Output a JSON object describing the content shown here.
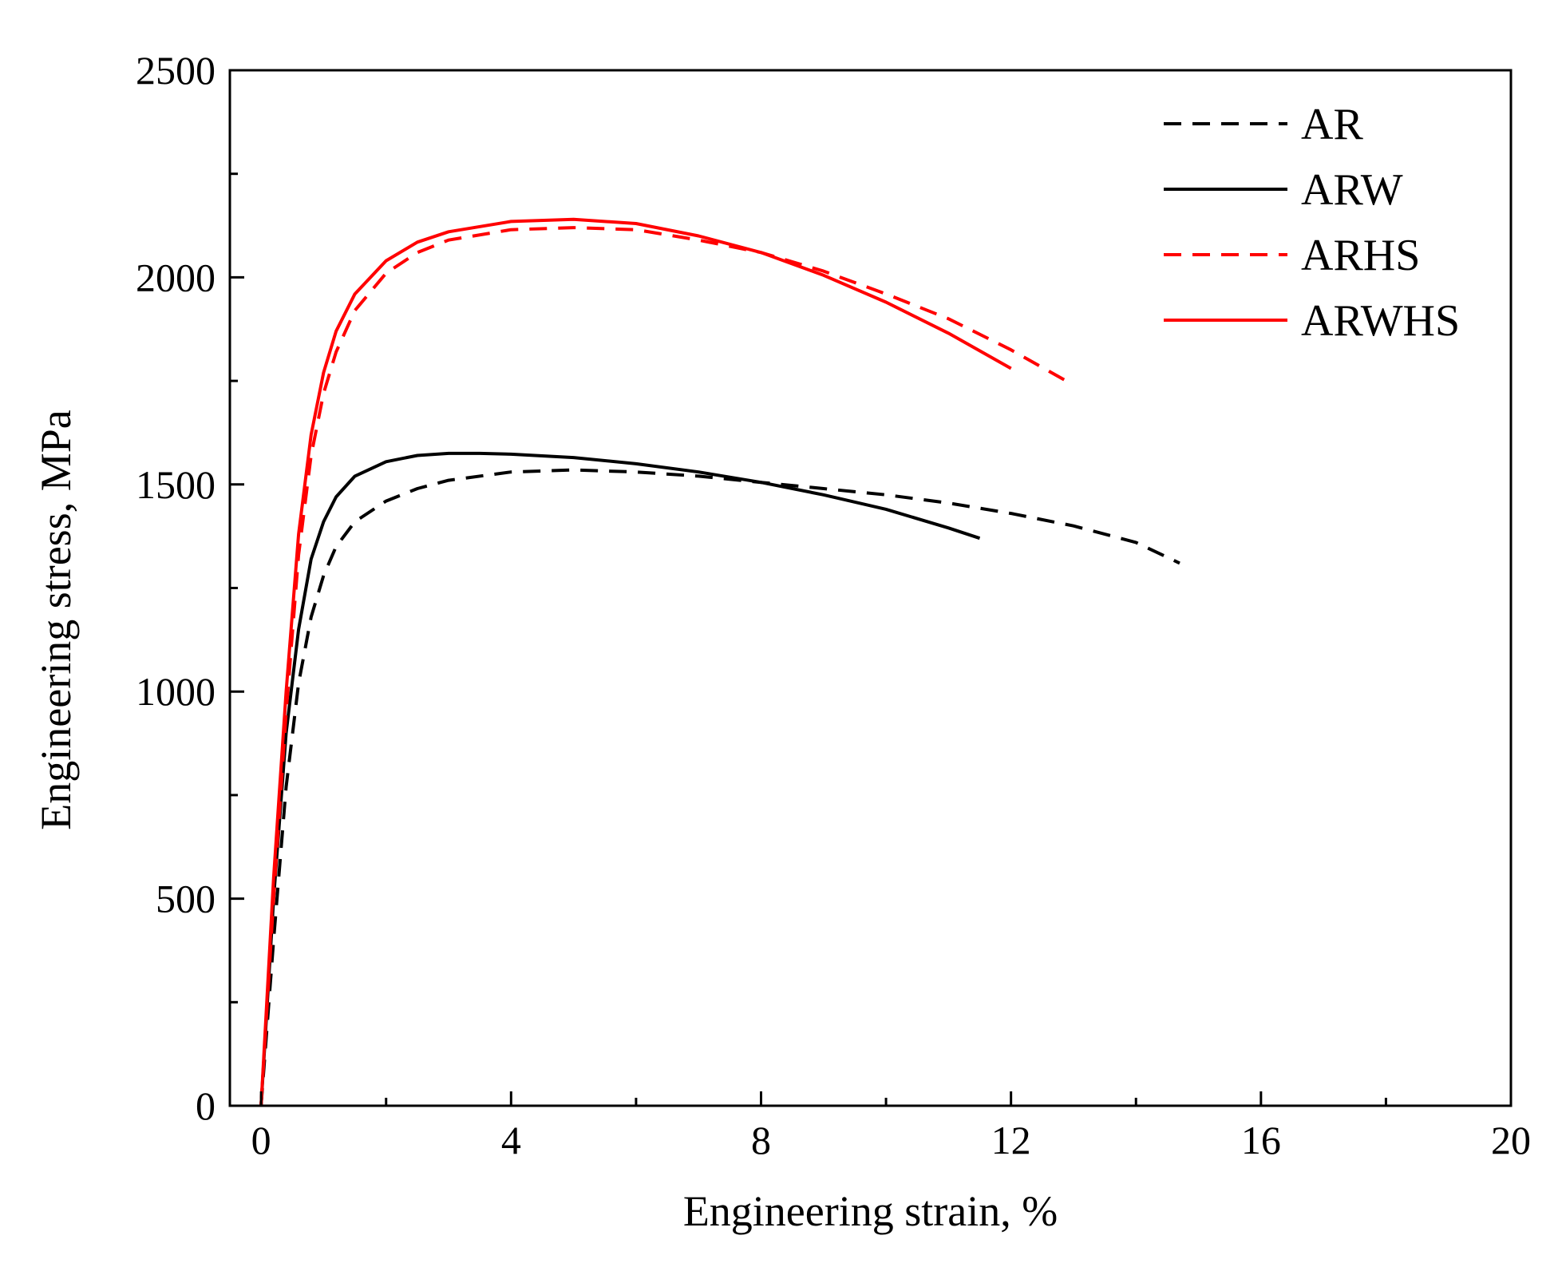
{
  "chart_data": {
    "type": "line",
    "title": "",
    "xlabel": "Engineering strain, %",
    "ylabel": "Engineering stress, MPa",
    "xlim": [
      -0.5,
      20
    ],
    "ylim": [
      0,
      2500
    ],
    "xticks": [
      0,
      4,
      8,
      12,
      16,
      20
    ],
    "xticks_minor": [
      2,
      6,
      10,
      14,
      18
    ],
    "yticks": [
      0,
      500,
      1000,
      1500,
      2000,
      2500
    ],
    "yticks_minor": [
      250,
      750,
      1250,
      1750,
      2250
    ],
    "xtick_labels": [
      "0",
      "4",
      "8",
      "12",
      "16",
      "20"
    ],
    "ytick_labels": [
      "0",
      "500",
      "1000",
      "1500",
      "2000",
      "2500"
    ],
    "grid": false,
    "legend_position": "top-right",
    "series": [
      {
        "name": "AR",
        "color": "#000000",
        "dash": "dashed",
        "x": [
          0,
          0.2,
          0.4,
          0.6,
          0.8,
          1.0,
          1.2,
          1.5,
          2.0,
          2.5,
          3.0,
          4.0,
          5.0,
          6.0,
          7.0,
          8.0,
          9.0,
          10.0,
          11.0,
          12.0,
          13.0,
          14.0,
          14.7
        ],
        "y": [
          0,
          400,
          770,
          1020,
          1180,
          1280,
          1350,
          1410,
          1460,
          1490,
          1510,
          1530,
          1535,
          1530,
          1520,
          1505,
          1490,
          1475,
          1455,
          1430,
          1400,
          1360,
          1310
        ]
      },
      {
        "name": "ARW",
        "color": "#000000",
        "dash": "solid",
        "x": [
          0,
          0.2,
          0.4,
          0.6,
          0.8,
          1.0,
          1.2,
          1.5,
          2.0,
          2.5,
          3.0,
          3.5,
          4.0,
          5.0,
          6.0,
          7.0,
          8.0,
          9.0,
          10.0,
          11.0,
          11.5
        ],
        "y": [
          0,
          500,
          900,
          1150,
          1320,
          1410,
          1470,
          1520,
          1555,
          1570,
          1575,
          1575,
          1573,
          1565,
          1550,
          1530,
          1505,
          1475,
          1440,
          1395,
          1370
        ]
      },
      {
        "name": "ARHS",
        "color": "#ff0000",
        "dash": "dashed",
        "x": [
          0,
          0.2,
          0.4,
          0.6,
          0.8,
          1.0,
          1.2,
          1.5,
          2.0,
          2.5,
          3.0,
          4.0,
          5.0,
          6.0,
          7.0,
          8.0,
          9.0,
          10.0,
          11.0,
          12.0,
          13.0
        ],
        "y": [
          0,
          500,
          950,
          1330,
          1570,
          1720,
          1820,
          1920,
          2010,
          2060,
          2090,
          2115,
          2120,
          2115,
          2090,
          2060,
          2015,
          1960,
          1900,
          1825,
          1740
        ]
      },
      {
        "name": "ARWHS",
        "color": "#ff0000",
        "dash": "solid",
        "x": [
          0,
          0.2,
          0.4,
          0.6,
          0.8,
          1.0,
          1.2,
          1.5,
          2.0,
          2.5,
          3.0,
          4.0,
          5.0,
          6.0,
          7.0,
          8.0,
          9.0,
          10.0,
          11.0,
          12.0
        ],
        "y": [
          0,
          550,
          1000,
          1380,
          1620,
          1770,
          1870,
          1960,
          2040,
          2085,
          2110,
          2135,
          2140,
          2130,
          2100,
          2060,
          2005,
          1940,
          1865,
          1780
        ]
      }
    ]
  }
}
